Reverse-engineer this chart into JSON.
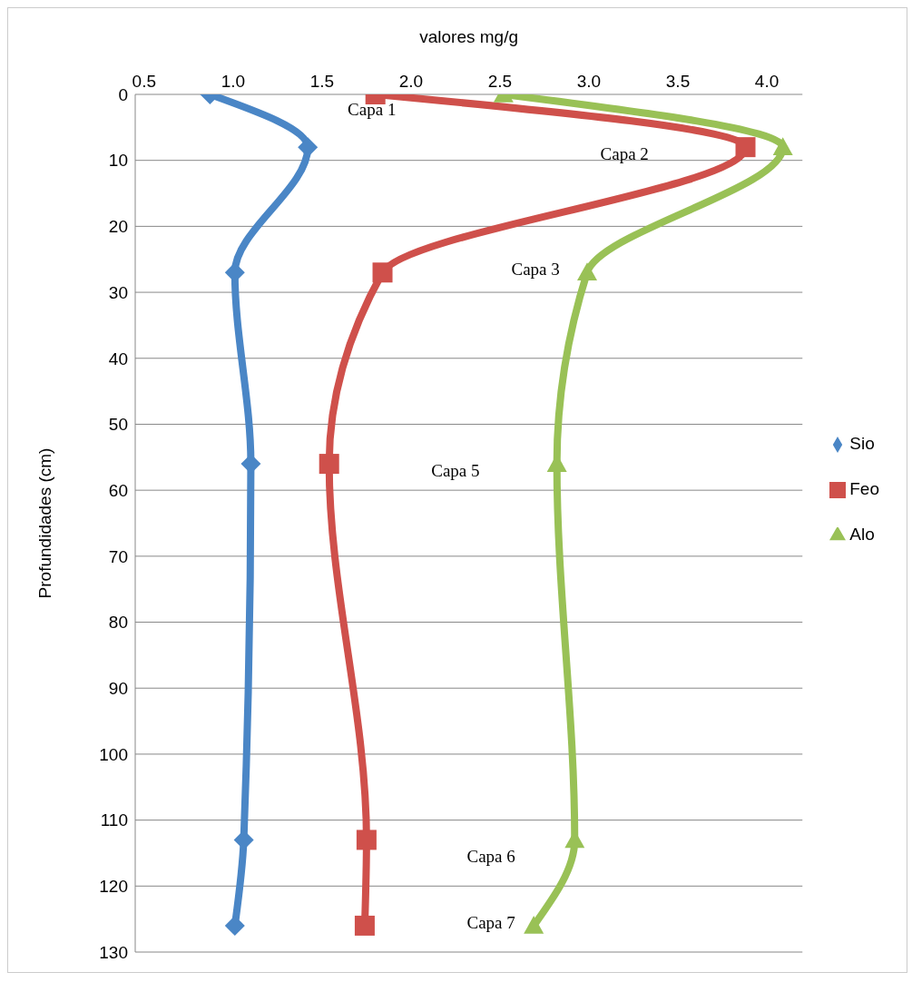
{
  "chart_data": {
    "type": "line",
    "xlabel": "valores mg/g",
    "ylabel": "Profundidades (cm)",
    "xlim": [
      0.45,
      4.2
    ],
    "xticks": [
      0.5,
      {
        "value": 1,
        "label": "1.0"
      },
      1.5,
      {
        "value": 2,
        "label": "2.0"
      },
      2.5,
      {
        "value": 3,
        "label": "3.0"
      },
      3.5,
      {
        "value": 4,
        "label": "4.0"
      }
    ],
    "ylim": [
      130,
      0
    ],
    "yticks": [
      0,
      10,
      20,
      30,
      40,
      50,
      60,
      70,
      80,
      90,
      100,
      110,
      120,
      130
    ],
    "grid": "y",
    "legend": "right",
    "line_style": "solid",
    "series": [
      {
        "name": "Sio",
        "color": "#4a86c6",
        "marker": "diamond",
        "x": [
          0.87,
          1.42,
          1.01,
          1.1,
          1.06,
          1.01
        ],
        "values": [
          0,
          8,
          27,
          56,
          113,
          126
        ]
      },
      {
        "name": "Feo",
        "color": "#cf504b",
        "marker": "square",
        "x": [
          1.8,
          3.88,
          1.84,
          1.54,
          1.75,
          1.74
        ],
        "values": [
          0,
          8,
          27,
          56,
          113,
          126
        ]
      },
      {
        "name": "Alo",
        "color": "#99c156",
        "marker": "triangle",
        "x": [
          2.52,
          4.09,
          2.99,
          2.82,
          2.92,
          2.69
        ],
        "values": [
          0,
          8,
          27,
          56,
          113,
          126
        ]
      }
    ],
    "annotations": [
      "Capa 1",
      "Capa 2",
      "Capa  3",
      "Capa 5",
      "Capa 6",
      "Capa 7"
    ]
  }
}
